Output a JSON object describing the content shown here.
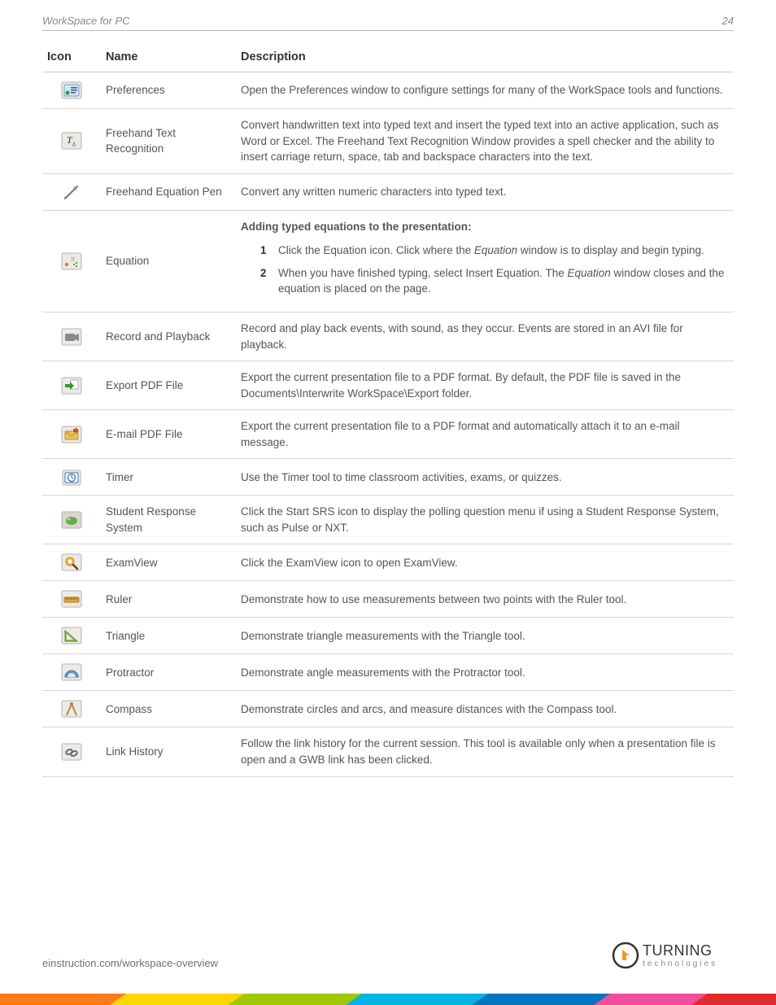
{
  "header": {
    "title": "WorkSpace for PC",
    "page_number": "24"
  },
  "columns": {
    "icon": "Icon",
    "name": "Name",
    "description": "Description"
  },
  "rows": [
    {
      "key": "preferences",
      "name": "Preferences",
      "desc_plain": "Open the Preferences window to configure settings for many of the WorkSpace tools and functions."
    },
    {
      "key": "freehand-text",
      "name": "Freehand Text Recognition",
      "desc_plain": "Convert handwritten text into typed text and insert the typed text into an active application, such as Word or Excel. The Freehand Text Recognition Window provides a spell checker and the ability to insert carriage return, space, tab and backspace characters into the text."
    },
    {
      "key": "freehand-eq-pen",
      "name": "Freehand Equation Pen",
      "desc_plain": "Convert any written numeric characters into typed text."
    },
    {
      "key": "equation",
      "name": "Equation",
      "equation_block": {
        "heading": "Adding typed equations to the presentation:",
        "steps": [
          {
            "num": "1",
            "pre": "Click the Equation icon. Click where the ",
            "em": "Equation",
            "post": " window is to display and begin typing."
          },
          {
            "num": "2",
            "pre": "When you have finished typing, select Insert Equation. The ",
            "em": "Equation",
            "post": " window closes and the equation is placed on the page."
          }
        ]
      }
    },
    {
      "key": "record",
      "name": "Record and Playback",
      "desc_plain": "Record and play back events, with sound, as they occur. Events are stored in an AVI file for playback."
    },
    {
      "key": "export-pdf",
      "name": "Export PDF File",
      "desc_plain": "Export the current presentation file to a PDF format. By default, the PDF file is saved in the Documents\\Interwrite WorkSpace\\Export folder."
    },
    {
      "key": "email-pdf",
      "name": "E-mail PDF File",
      "desc_plain": "Export the current presentation file to a PDF format and automatically attach it to an e-mail message."
    },
    {
      "key": "timer",
      "name": "Timer",
      "desc_plain": "Use the Timer tool to time classroom activities, exams, or quizzes."
    },
    {
      "key": "srs",
      "name": "Student Response System",
      "desc_plain": "Click the Start SRS icon to display the polling question menu if using a Student Response System, such as Pulse or NXT."
    },
    {
      "key": "examview",
      "name": "ExamView",
      "desc_plain": "Click the ExamView icon to open ExamView."
    },
    {
      "key": "ruler",
      "name": "Ruler",
      "desc_plain": "Demonstrate how to use measurements between two points with the Ruler tool."
    },
    {
      "key": "triangle",
      "name": "Triangle",
      "desc_plain": "Demonstrate triangle measurements with the Triangle tool."
    },
    {
      "key": "protractor",
      "name": "Protractor",
      "desc_plain": "Demonstrate angle measurements with the Protractor tool."
    },
    {
      "key": "compass",
      "name": "Compass",
      "desc_plain": "Demonstrate circles and arcs, and measure distances with the Compass tool."
    },
    {
      "key": "link-history",
      "name": "Link History",
      "desc_plain": "Follow the link history for the current session. This tool is available only when a presentation file is open and a GWB link has been clicked."
    }
  ],
  "footer": {
    "url": "einstruction.com/workspace-overview",
    "logo": {
      "top": "TURNING",
      "bottom": "technologies",
      "accent": "#f59a22",
      "text_color": "#333333",
      "sub_color": "#888888"
    },
    "stripe_colors": [
      "#ff7a1a",
      "#ffd600",
      "#a0c800",
      "#00b4e6",
      "#0076c0",
      "#f04e9a",
      "#e22b2b"
    ]
  },
  "icons": {
    "preferences": {
      "bg": "#eceae6",
      "border": "#b7b3aa",
      "inner_bg": "#d0e8ff",
      "accent": "#2a9b2a"
    },
    "freehand-text": {
      "bg": "#eceae6",
      "border": "#b7b3aa",
      "glyph_color": "#2a2a2a"
    },
    "freehand-eq-pen": {
      "pen": "#7a7a7a",
      "pi": "#d87a2a"
    },
    "equation": {
      "bg": "#eceae6",
      "border": "#b7b3aa",
      "pi": "#d87a2a",
      "dots": "#3a7a3a"
    },
    "record": {
      "bg": "#eceae6",
      "border": "#b7b3aa",
      "cam": "#8a8a8a"
    },
    "export-pdf": {
      "bg": "#eceae6",
      "border": "#b7b3aa",
      "arrow": "#2aa02a",
      "page": "#ffffff"
    },
    "email-pdf": {
      "bg": "#eceae6",
      "border": "#b7b3aa",
      "env": "#e6c25a",
      "arrow": "#d14a2a"
    },
    "timer": {
      "bg": "#eceae6",
      "border": "#b7b3aa",
      "clock": "#3a6fb0"
    },
    "srs": {
      "bg": "#dad6cc",
      "border": "#b7b3aa",
      "ball": "#6aa84f"
    },
    "examview": {
      "bg": "#eceae6",
      "border": "#b7b3aa",
      "lens": "#f5b83d",
      "handle": "#6b3d1a"
    },
    "ruler": {
      "bg": "#eceae6",
      "border": "#b7b3aa",
      "ruler": "#e8a23d"
    },
    "triangle": {
      "bg": "#eceae6",
      "border": "#b7b3aa",
      "tri": "#8fb85a"
    },
    "protractor": {
      "bg": "#eceae6",
      "border": "#b7b3aa",
      "arc": "#5aa0c8"
    },
    "compass": {
      "bg": "#eceae6",
      "border": "#b7b3aa",
      "legs": "#b08a3a"
    },
    "link-history": {
      "bg": "#eceae6",
      "border": "#b7b3aa",
      "chain": "#6a6a6a"
    }
  }
}
